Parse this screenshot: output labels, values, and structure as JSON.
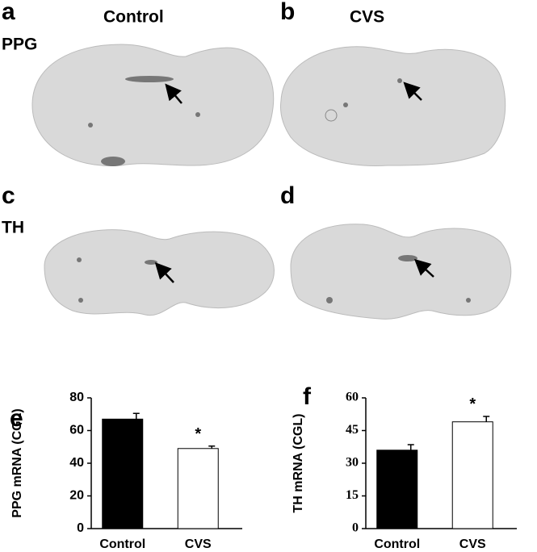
{
  "panels": [
    {
      "letter": "a",
      "heading": "Control",
      "row_label": "PPG"
    },
    {
      "letter": "b",
      "heading": "CVS"
    },
    {
      "letter": "c",
      "row_label": "TH"
    },
    {
      "letter": "d"
    }
  ],
  "chart_data": [
    {
      "type": "bar",
      "panel": "e",
      "ylabel": "PPG mRNA (CGL)",
      "categories": [
        "Control",
        "CVS"
      ],
      "values": [
        67,
        49
      ],
      "errors": [
        3.5,
        1.5
      ],
      "colors": [
        "#000000",
        "#ffffff"
      ],
      "annotations": [
        {
          "text": "*",
          "category": 1
        }
      ],
      "ylim": [
        0,
        80
      ],
      "yticks": [
        0,
        20,
        40,
        60,
        80
      ]
    },
    {
      "type": "bar",
      "panel": "f",
      "ylabel": "TH mRNA (CGL)",
      "categories": [
        "Control",
        "CVS"
      ],
      "values": [
        36,
        49
      ],
      "errors": [
        2.5,
        2.5
      ],
      "colors": [
        "#000000",
        "#ffffff"
      ],
      "annotations": [
        {
          "text": "*",
          "category": 1
        }
      ],
      "ylim": [
        0,
        60
      ],
      "yticks": [
        0,
        15,
        30,
        45,
        60
      ]
    }
  ]
}
